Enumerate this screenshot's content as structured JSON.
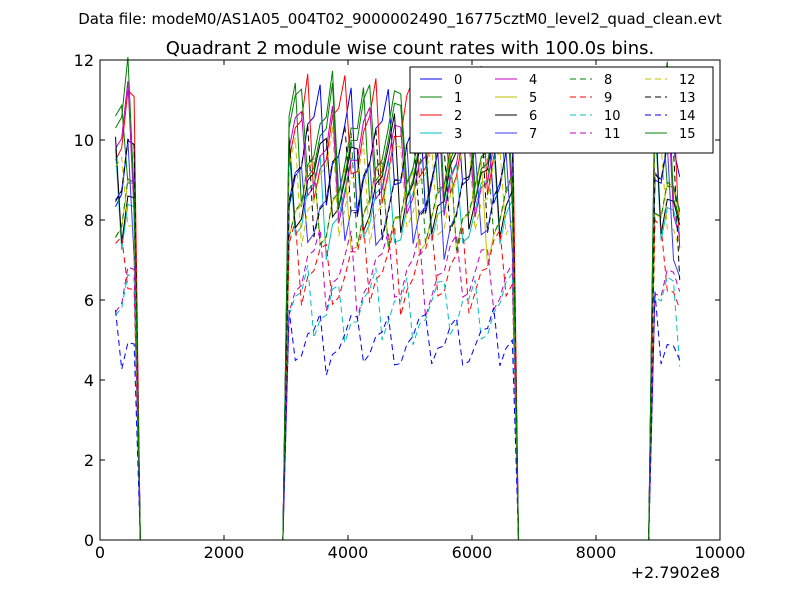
{
  "chart_data": {
    "type": "line",
    "suptitle": "Data file: modeM0/AS1A05_004T02_9000002490_16775cztM0_level2_quad_clean.evt",
    "title": "Quadrant 2 module wise count rates with 100.0s bins.",
    "xlabel": "",
    "ylabel": "",
    "x_offset_label": "+2.7902e8",
    "xlim": [
      0,
      10000
    ],
    "ylim": [
      0,
      12
    ],
    "xticks": [
      0,
      2000,
      4000,
      6000,
      8000,
      10000
    ],
    "yticks": [
      0,
      2,
      4,
      6,
      8,
      10,
      12
    ],
    "xtick_labels": [
      "0",
      "2000",
      "4000",
      "6000",
      "8000",
      "10000"
    ],
    "ytick_labels": [
      "0",
      "2",
      "4",
      "6",
      "8",
      "10",
      "12"
    ],
    "grid": false,
    "legend": "top-right",
    "legend_columns": 4,
    "series": [
      {
        "name": "0",
        "color": "#0000ff",
        "dash": "solid",
        "level": 9.8
      },
      {
        "name": "1",
        "color": "#008000",
        "dash": "solid",
        "level": 10.0
      },
      {
        "name": "2",
        "color": "#ff0000",
        "dash": "solid",
        "level": 10.1
      },
      {
        "name": "3",
        "color": "#00bfbf",
        "dash": "solid",
        "level": 8.5
      },
      {
        "name": "4",
        "color": "#bf00bf",
        "dash": "solid",
        "level": 9.5
      },
      {
        "name": "5",
        "color": "#bfbf00",
        "dash": "solid",
        "level": 8.3
      },
      {
        "name": "6",
        "color": "#000000",
        "dash": "solid",
        "level": 9.0
      },
      {
        "name": "7",
        "color": "#3535ff",
        "dash": "solid",
        "level": 8.5
      },
      {
        "name": "8",
        "color": "#008000",
        "dash": "dashed",
        "level": 8.6
      },
      {
        "name": "9",
        "color": "#ff0000",
        "dash": "dashed",
        "level": 6.8
      },
      {
        "name": "10",
        "color": "#00bfbf",
        "dash": "dashed",
        "level": 5.8
      },
      {
        "name": "11",
        "color": "#bf00bf",
        "dash": "dashed",
        "level": 6.7
      },
      {
        "name": "12",
        "color": "#bfbf00",
        "dash": "dashed",
        "level": 8.8
      },
      {
        "name": "13",
        "color": "#000000",
        "dash": "dashed",
        "level": 9.0
      },
      {
        "name": "14",
        "color": "#0000ff",
        "dash": "dashed",
        "level": 5.0
      },
      {
        "name": "15",
        "color": "#008000",
        "dash": "solid",
        "level": 10.0
      }
    ],
    "segments": [
      {
        "x": [
          250,
          350,
          450,
          550
        ],
        "factors": [
          1.0,
          0.97,
          1.05,
          0.98
        ]
      },
      {
        "x": [
          3050,
          3150,
          3250,
          3350,
          3450,
          3550,
          3650,
          3750,
          3850,
          3950,
          4050,
          4150,
          4250,
          4350,
          4450,
          4550,
          4650,
          4750,
          4850,
          4950,
          5050,
          5150,
          5250,
          5350,
          5450,
          5550,
          5650,
          5750,
          5850,
          5950,
          6050,
          6150,
          6250,
          6350,
          6450,
          6550,
          6650
        ],
        "factors": [
          1.0,
          1.02,
          0.98,
          1.03,
          0.99,
          1.01,
          0.97,
          1.02,
          0.98,
          1.0,
          1.03,
          0.97,
          1.01,
          0.99,
          1.02,
          0.98,
          1.0,
          1.03,
          0.97,
          1.01,
          0.99,
          1.02,
          0.98,
          1.0,
          1.02,
          0.97,
          1.01,
          0.99,
          1.03,
          0.98,
          1.0,
          1.02,
          0.97,
          1.01,
          0.99,
          1.02,
          1.0
        ]
      },
      {
        "x": [
          8950,
          9050,
          9150,
          9250,
          9350
        ],
        "factors": [
          1.08,
          1.0,
          1.04,
          0.97,
          0.85
        ]
      }
    ]
  }
}
